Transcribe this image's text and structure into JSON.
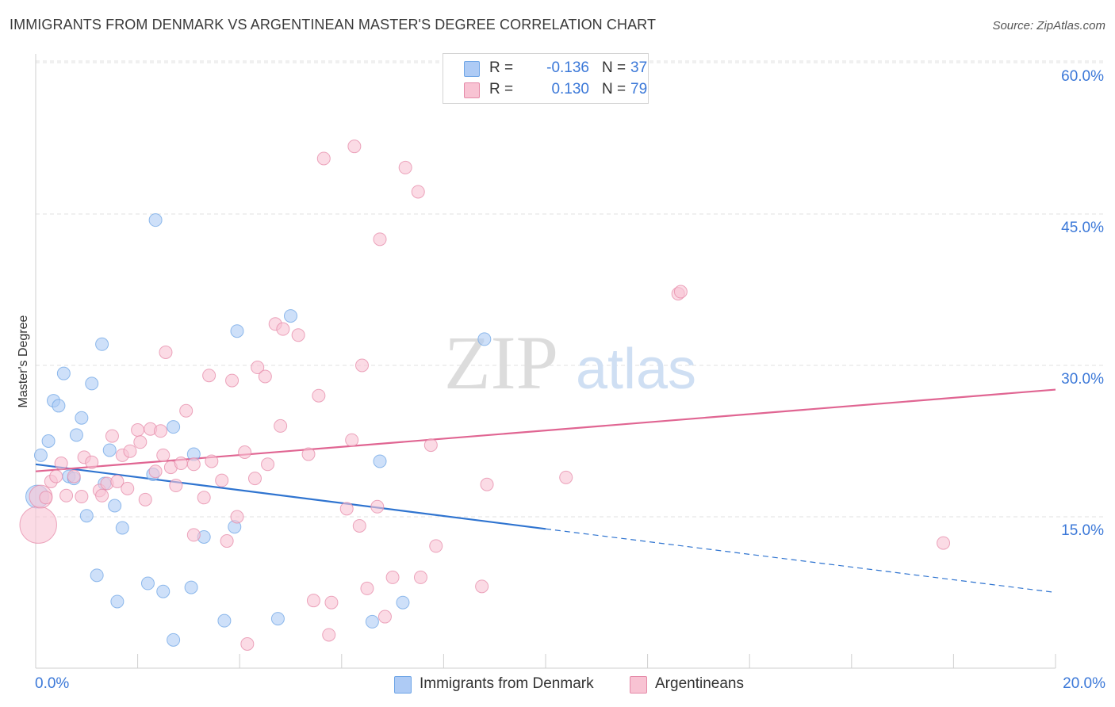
{
  "title": "IMMIGRANTS FROM DENMARK VS ARGENTINEAN MASTER'S DEGREE CORRELATION CHART",
  "source": "Source: ZipAtlas.com",
  "watermark": {
    "zip": "ZIP",
    "atlas": "atlas"
  },
  "legend_top": {
    "rows": [
      {
        "r_label": "R =",
        "r_value": "-0.136",
        "n_label": "N =",
        "n_value": "37",
        "color": "#aecbf5"
      },
      {
        "r_label": "R =",
        "r_value": "0.130",
        "n_label": "N =",
        "n_value": "79",
        "color": "#f8c3d3"
      }
    ]
  },
  "legend_bottom": [
    {
      "label": "Immigrants from Denmark",
      "color": "#aecbf5"
    },
    {
      "label": "Argentineans",
      "color": "#f8c3d3"
    }
  ],
  "x_ticks": {
    "left": "0.0%",
    "right": "20.0%"
  },
  "y_ticks": [
    "60.0%",
    "45.0%",
    "30.0%",
    "15.0%"
  ],
  "chart_data": {
    "type": "scatter",
    "title": "IMMIGRANTS FROM DENMARK VS ARGENTINEAN MASTER'S DEGREE CORRELATION CHART",
    "xlabel": "",
    "ylabel": "Master's Degree",
    "xlim": [
      0,
      20
    ],
    "ylim": [
      0,
      62.5
    ],
    "y_ticks": [
      15,
      30,
      45,
      60
    ],
    "grid": "horizontal dashed",
    "legend_placement": "top-center and bottom",
    "series": [
      {
        "name": "Immigrants from Denmark",
        "color": "#6fa5e6",
        "fill": "#aecbf5",
        "r": -0.136,
        "n": 37,
        "trend": {
          "x0": 0,
          "y0": 20.2,
          "x1": 10,
          "y1": 13.8,
          "dash_to_x": 20,
          "dash_to_y": 7.5
        },
        "points": [
          [
            0.03,
            17,
            2
          ],
          [
            0.1,
            21.1,
            1
          ],
          [
            0.25,
            22.5,
            1
          ],
          [
            0.35,
            26.5,
            1
          ],
          [
            0.45,
            26,
            1
          ],
          [
            0.55,
            29.2,
            1
          ],
          [
            0.65,
            19,
            1
          ],
          [
            0.75,
            18.8,
            1
          ],
          [
            0.8,
            23.1,
            1
          ],
          [
            0.9,
            24.8,
            1
          ],
          [
            1.0,
            15.1,
            1
          ],
          [
            1.1,
            28.2,
            1
          ],
          [
            1.2,
            9.2,
            1
          ],
          [
            1.3,
            32.1,
            1
          ],
          [
            1.35,
            18.3,
            1
          ],
          [
            1.45,
            21.6,
            1
          ],
          [
            1.55,
            16.1,
            1
          ],
          [
            1.6,
            6.6,
            1
          ],
          [
            1.7,
            13.9,
            1
          ],
          [
            2.2,
            8.4,
            1
          ],
          [
            2.3,
            19.2,
            1
          ],
          [
            2.35,
            44.4,
            1
          ],
          [
            2.5,
            7.6,
            1
          ],
          [
            2.7,
            2.8,
            1
          ],
          [
            2.7,
            23.9,
            1
          ],
          [
            3.05,
            8,
            1
          ],
          [
            3.1,
            21.2,
            1
          ],
          [
            3.3,
            13,
            1
          ],
          [
            3.7,
            4.7,
            1
          ],
          [
            3.9,
            14,
            1
          ],
          [
            3.95,
            33.4,
            1
          ],
          [
            4.75,
            4.9,
            1
          ],
          [
            5.0,
            34.9,
            1
          ],
          [
            6.6,
            4.6,
            1
          ],
          [
            6.75,
            20.5,
            1
          ],
          [
            7.2,
            6.5,
            1
          ],
          [
            8.8,
            32.6,
            1
          ]
        ]
      },
      {
        "name": "Argentineans",
        "color": "#e58aa8",
        "fill": "#f8c3d3",
        "r": 0.13,
        "n": 79,
        "trend": {
          "x0": 0,
          "y0": 19.5,
          "x1": 20,
          "y1": 27.6
        },
        "points": [
          [
            0.05,
            14.2,
            3
          ],
          [
            0.1,
            17,
            2
          ],
          [
            0.2,
            16.9,
            1
          ],
          [
            0.3,
            18.5,
            1
          ],
          [
            0.4,
            19,
            1
          ],
          [
            0.5,
            20.3,
            1
          ],
          [
            0.6,
            17.1,
            1
          ],
          [
            0.75,
            19,
            1
          ],
          [
            0.9,
            17,
            1
          ],
          [
            0.95,
            20.9,
            1
          ],
          [
            1.1,
            20.4,
            1
          ],
          [
            1.25,
            17.6,
            1
          ],
          [
            1.3,
            17.1,
            1
          ],
          [
            1.4,
            18.3,
            1
          ],
          [
            1.5,
            23,
            1
          ],
          [
            1.6,
            18.5,
            1
          ],
          [
            1.7,
            21.1,
            1
          ],
          [
            1.8,
            17.8,
            1
          ],
          [
            1.85,
            21.5,
            1
          ],
          [
            2.0,
            23.6,
            1
          ],
          [
            2.05,
            22.4,
            1
          ],
          [
            2.15,
            16.7,
            1
          ],
          [
            2.25,
            23.7,
            1
          ],
          [
            2.35,
            19.5,
            1
          ],
          [
            2.45,
            23.5,
            1
          ],
          [
            2.5,
            21.1,
            1
          ],
          [
            2.55,
            31.3,
            1
          ],
          [
            2.65,
            19.9,
            1
          ],
          [
            2.75,
            18.1,
            1
          ],
          [
            2.85,
            20.3,
            1
          ],
          [
            2.95,
            25.5,
            1
          ],
          [
            3.1,
            20.2,
            1
          ],
          [
            3.1,
            13.2,
            1
          ],
          [
            3.3,
            16.9,
            1
          ],
          [
            3.4,
            29,
            1
          ],
          [
            3.45,
            20.5,
            1
          ],
          [
            3.65,
            18.6,
            1
          ],
          [
            3.75,
            12.6,
            1
          ],
          [
            3.85,
            28.5,
            1
          ],
          [
            3.95,
            15,
            1
          ],
          [
            4.1,
            21.4,
            1
          ],
          [
            4.15,
            2.4,
            1
          ],
          [
            4.3,
            18.8,
            1
          ],
          [
            4.35,
            29.8,
            1
          ],
          [
            4.5,
            28.9,
            1
          ],
          [
            4.55,
            20.2,
            1
          ],
          [
            4.7,
            34.1,
            1
          ],
          [
            4.8,
            24,
            1
          ],
          [
            4.85,
            33.6,
            1
          ],
          [
            5.15,
            33,
            1
          ],
          [
            5.35,
            21.2,
            1
          ],
          [
            5.45,
            6.7,
            1
          ],
          [
            5.55,
            27,
            1
          ],
          [
            5.65,
            50.5,
            1
          ],
          [
            5.75,
            3.3,
            1
          ],
          [
            5.8,
            6.5,
            1
          ],
          [
            6.1,
            15.8,
            1
          ],
          [
            6.2,
            22.6,
            1
          ],
          [
            6.25,
            51.7,
            1
          ],
          [
            6.35,
            14.1,
            1
          ],
          [
            6.4,
            30,
            1
          ],
          [
            6.5,
            7.9,
            1
          ],
          [
            6.7,
            16,
            1
          ],
          [
            6.75,
            42.5,
            1
          ],
          [
            6.85,
            5.1,
            1
          ],
          [
            7.0,
            9,
            1
          ],
          [
            7.25,
            49.6,
            1
          ],
          [
            7.5,
            47.2,
            1
          ],
          [
            7.55,
            9,
            1
          ],
          [
            7.75,
            22.1,
            1
          ],
          [
            7.85,
            12.1,
            1
          ],
          [
            8.75,
            8.1,
            1
          ],
          [
            8.85,
            18.2,
            1
          ],
          [
            10.4,
            18.9,
            1
          ],
          [
            12.6,
            37.1,
            1
          ],
          [
            12.65,
            37.3,
            1
          ],
          [
            17.8,
            12.4,
            1
          ]
        ]
      }
    ]
  }
}
